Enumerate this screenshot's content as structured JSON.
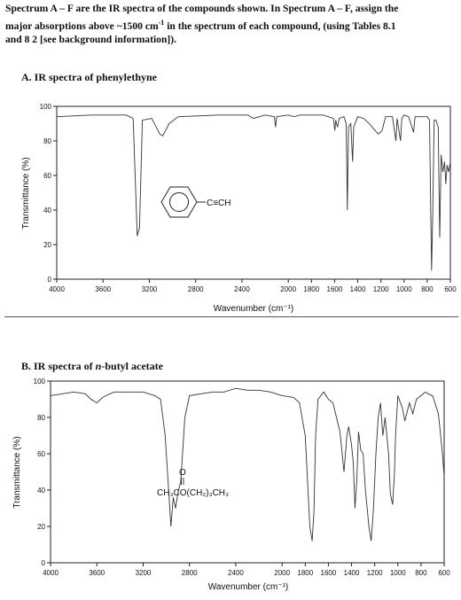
{
  "intro": {
    "line1": "Spectrum A – F are the IR spectra of the compounds shown. In Spectrum A – F, assign the",
    "line2a": "major absorptions above ~1500 cm",
    "line2sup": "-1",
    "line2b": " in the spectrum of each compound, (using Tables 8.1",
    "line3": "and 8 2 [see background information])."
  },
  "section_a": {
    "heading": "A.  IR spectra of phenylethyne"
  },
  "section_b": {
    "heading_prefix": "B.  IR spectra of ",
    "heading_italic": "n",
    "heading_suffix": "-butyl acetate"
  },
  "chart_data": [
    {
      "type": "line",
      "xlabel": "Wavenumber (cm⁻¹)",
      "ylabel": "Transmittance (%)",
      "xlim": [
        4000,
        600
      ],
      "ylim": [
        0,
        100
      ],
      "xticks": [
        "4000",
        "3600",
        "3200",
        "2800",
        "2400",
        "2000",
        "1800",
        "1600",
        "1400",
        "1200",
        "1000",
        "800",
        "600"
      ],
      "yticks": [
        "0",
        "20",
        "40",
        "60",
        "80",
        "100"
      ],
      "annotation": {
        "molecule": "C≡CH"
      },
      "series": [
        {
          "points": [
            [
              4000,
              94
            ],
            [
              3700,
              95
            ],
            [
              3400,
              95
            ],
            [
              3340,
              93
            ],
            [
              3305,
              25
            ],
            [
              3285,
              30
            ],
            [
              3260,
              92
            ],
            [
              3180,
              93
            ],
            [
              3110,
              84
            ],
            [
              3085,
              83
            ],
            [
              3060,
              86
            ],
            [
              3030,
              90
            ],
            [
              2950,
              94
            ],
            [
              2600,
              95
            ],
            [
              2350,
              95
            ],
            [
              2300,
              93
            ],
            [
              2250,
              94
            ],
            [
              2200,
              95
            ],
            [
              2120,
              94
            ],
            [
              2110,
              88
            ],
            [
              2100,
              94
            ],
            [
              2000,
              95
            ],
            [
              1950,
              94
            ],
            [
              1900,
              95
            ],
            [
              1800,
              95
            ],
            [
              1700,
              95
            ],
            [
              1610,
              93
            ],
            [
              1598,
              86
            ],
            [
              1590,
              92
            ],
            [
              1575,
              88
            ],
            [
              1560,
              93
            ],
            [
              1520,
              94
            ],
            [
              1500,
              90
            ],
            [
              1490,
              40
            ],
            [
              1480,
              88
            ],
            [
              1460,
              90
            ],
            [
              1445,
              68
            ],
            [
              1435,
              88
            ],
            [
              1400,
              94
            ],
            [
              1350,
              93
            ],
            [
              1300,
              90
            ],
            [
              1250,
              86
            ],
            [
              1220,
              84
            ],
            [
              1190,
              86
            ],
            [
              1175,
              90
            ],
            [
              1160,
              94
            ],
            [
              1100,
              94
            ],
            [
              1070,
              80
            ],
            [
              1060,
              93
            ],
            [
              1030,
              80
            ],
            [
              1020,
              93
            ],
            [
              1000,
              95
            ],
            [
              960,
              94
            ],
            [
              918,
              85
            ],
            [
              905,
              94
            ],
            [
              860,
              94
            ],
            [
              830,
              94
            ],
            [
              800,
              94
            ],
            [
              780,
              92
            ],
            [
              762,
              5
            ],
            [
              752,
              40
            ],
            [
              740,
              92
            ],
            [
              725,
              92
            ],
            [
              705,
              88
            ],
            [
              692,
              24
            ],
            [
              680,
              72
            ],
            [
              665,
              62
            ],
            [
              650,
              68
            ],
            [
              640,
              55
            ],
            [
              628,
              66
            ],
            [
              615,
              62
            ],
            [
              600,
              68
            ]
          ]
        }
      ]
    },
    {
      "type": "line",
      "xlabel": "Wavenumber (cm⁻¹)",
      "ylabel": "Transmittance (%)",
      "xlim": [
        4000,
        600
      ],
      "ylim": [
        0,
        100
      ],
      "xticks": [
        "4000",
        "3600",
        "3200",
        "2800",
        "2400",
        "2000",
        "1800",
        "1600",
        "1400",
        "1200",
        "1000",
        "800",
        "600"
      ],
      "yticks": [
        "0",
        "20",
        "40",
        "60",
        "80",
        "100"
      ],
      "annotation": {
        "carbonyl_o": "O",
        "formula": "CH₃CO(CH₂)₃CH₃"
      },
      "series": [
        {
          "points": [
            [
              4000,
              92
            ],
            [
              3800,
              94
            ],
            [
              3700,
              93
            ],
            [
              3650,
              90
            ],
            [
              3600,
              88
            ],
            [
              3550,
              91
            ],
            [
              3450,
              94
            ],
            [
              3200,
              94
            ],
            [
              3100,
              92
            ],
            [
              3050,
              90
            ],
            [
              3010,
              70
            ],
            [
              2990,
              50
            ],
            [
              2960,
              20
            ],
            [
              2940,
              36
            ],
            [
              2920,
              30
            ],
            [
              2900,
              38
            ],
            [
              2875,
              45
            ],
            [
              2860,
              60
            ],
            [
              2840,
              80
            ],
            [
              2800,
              92
            ],
            [
              2700,
              93
            ],
            [
              2600,
              94
            ],
            [
              2500,
              94
            ],
            [
              2400,
              96
            ],
            [
              2300,
              95
            ],
            [
              2200,
              95
            ],
            [
              2100,
              94
            ],
            [
              2000,
              92
            ],
            [
              1900,
              91
            ],
            [
              1850,
              88
            ],
            [
              1800,
              70
            ],
            [
              1760,
              20
            ],
            [
              1740,
              12
            ],
            [
              1725,
              28
            ],
            [
              1710,
              70
            ],
            [
              1690,
              90
            ],
            [
              1640,
              94
            ],
            [
              1600,
              90
            ],
            [
              1560,
              88
            ],
            [
              1500,
              72
            ],
            [
              1465,
              50
            ],
            [
              1440,
              70
            ],
            [
              1425,
              75
            ],
            [
              1400,
              65
            ],
            [
              1385,
              55
            ],
            [
              1370,
              30
            ],
            [
              1355,
              45
            ],
            [
              1340,
              72
            ],
            [
              1320,
              62
            ],
            [
              1300,
              60
            ],
            [
              1280,
              40
            ],
            [
              1250,
              20
            ],
            [
              1230,
              12
            ],
            [
              1210,
              30
            ],
            [
              1190,
              60
            ],
            [
              1170,
              80
            ],
            [
              1150,
              88
            ],
            [
              1130,
              70
            ],
            [
              1110,
              80
            ],
            [
              1080,
              60
            ],
            [
              1065,
              38
            ],
            [
              1045,
              32
            ],
            [
              1030,
              48
            ],
            [
              1020,
              70
            ],
            [
              1000,
              92
            ],
            [
              960,
              85
            ],
            [
              940,
              78
            ],
            [
              900,
              88
            ],
            [
              870,
              82
            ],
            [
              840,
              90
            ],
            [
              800,
              92
            ],
            [
              760,
              94
            ],
            [
              740,
              93
            ],
            [
              700,
              92
            ],
            [
              680,
              88
            ],
            [
              650,
              82
            ],
            [
              630,
              70
            ],
            [
              615,
              60
            ],
            [
              600,
              48
            ]
          ]
        }
      ]
    }
  ]
}
